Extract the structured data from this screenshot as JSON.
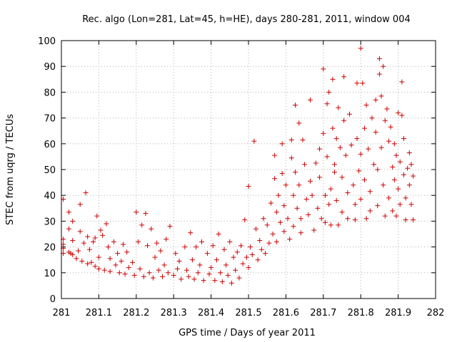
{
  "chart_data": {
    "type": "scatter",
    "title": "Rec. algo (Lon=281, Lat=45, h=HE), days 280-281, 2011, window 004",
    "xlabel": "GPS time / Days of year 2011",
    "ylabel": "STEC from uqrg / TECUs",
    "xlim": [
      281,
      282
    ],
    "ylim": [
      0,
      100
    ],
    "xticks": [
      281,
      281.1,
      281.2,
      281.3,
      281.4,
      281.5,
      281.6,
      281.7,
      281.8,
      281.9,
      282
    ],
    "xtick_labels": [
      "281",
      "281.1",
      "281.2",
      "281.3",
      "281.4",
      "281.5",
      "281.6",
      "281.7",
      "281.8",
      "281.9",
      "282"
    ],
    "yticks": [
      0,
      10,
      20,
      30,
      40,
      50,
      60,
      70,
      80,
      90,
      100
    ],
    "ytick_labels": [
      "0",
      "10",
      "20",
      "30",
      "40",
      "50",
      "60",
      "70",
      "80",
      "90",
      "100"
    ],
    "grid": true,
    "marker": "plus",
    "color": "#cc0000",
    "series": [
      {
        "name": "",
        "points": [
          [
            281.005,
            38.5
          ],
          [
            281.005,
            23
          ],
          [
            281.005,
            19.5
          ],
          [
            281.005,
            17.5
          ],
          [
            281.005,
            21
          ],
          [
            281.02,
            33.5
          ],
          [
            281.02,
            27
          ],
          [
            281.02,
            18
          ],
          [
            281.025,
            17.5
          ],
          [
            281.03,
            30
          ],
          [
            281.03,
            22.5
          ],
          [
            281.03,
            17
          ],
          [
            281.04,
            15.5
          ],
          [
            281.045,
            18.5
          ],
          [
            281.05,
            36.5
          ],
          [
            281.05,
            26
          ],
          [
            281.055,
            14.5
          ],
          [
            281.06,
            21.5
          ],
          [
            281.065,
            41
          ],
          [
            281.07,
            24
          ],
          [
            281.07,
            13.5
          ],
          [
            281.075,
            19
          ],
          [
            281.08,
            14
          ],
          [
            281.085,
            22
          ],
          [
            281.09,
            23.5
          ],
          [
            281.09,
            12.5
          ],
          [
            281.095,
            32
          ],
          [
            281.1,
            16
          ],
          [
            281.1,
            11.5
          ],
          [
            281.105,
            26.5
          ],
          [
            281.11,
            24.5
          ],
          [
            281.115,
            11
          ],
          [
            281.12,
            29
          ],
          [
            281.125,
            20
          ],
          [
            281.13,
            15.5
          ],
          [
            281.13,
            10.5
          ],
          [
            281.14,
            22
          ],
          [
            281.145,
            13
          ],
          [
            281.15,
            17.5
          ],
          [
            281.155,
            10
          ],
          [
            281.16,
            14.5
          ],
          [
            281.165,
            21
          ],
          [
            281.17,
            9.5
          ],
          [
            281.175,
            18
          ],
          [
            281.18,
            12
          ],
          [
            281.19,
            14
          ],
          [
            281.195,
            9
          ],
          [
            281.2,
            33.5
          ],
          [
            281.205,
            22
          ],
          [
            281.21,
            11.5
          ],
          [
            281.215,
            28.5
          ],
          [
            281.22,
            8.5
          ],
          [
            281.225,
            33
          ],
          [
            281.23,
            20.5
          ],
          [
            281.235,
            10
          ],
          [
            281.24,
            27
          ],
          [
            281.245,
            8
          ],
          [
            281.25,
            16
          ],
          [
            281.255,
            21.5
          ],
          [
            281.26,
            11
          ],
          [
            281.265,
            18.5
          ],
          [
            281.27,
            8.5
          ],
          [
            281.275,
            13
          ],
          [
            281.28,
            23
          ],
          [
            281.285,
            10
          ],
          [
            281.29,
            28
          ],
          [
            281.3,
            9
          ],
          [
            281.305,
            17.5
          ],
          [
            281.31,
            11.5
          ],
          [
            281.315,
            14.5
          ],
          [
            281.32,
            7.5
          ],
          [
            281.33,
            20
          ],
          [
            281.335,
            11
          ],
          [
            281.34,
            8.5
          ],
          [
            281.345,
            25.5
          ],
          [
            281.35,
            15
          ],
          [
            281.355,
            7.5
          ],
          [
            281.36,
            20
          ],
          [
            281.365,
            10
          ],
          [
            281.37,
            13
          ],
          [
            281.375,
            22
          ],
          [
            281.38,
            7
          ],
          [
            281.39,
            17.5
          ],
          [
            281.395,
            9.5
          ],
          [
            281.4,
            12
          ],
          [
            281.405,
            20.5
          ],
          [
            281.41,
            7
          ],
          [
            281.415,
            15
          ],
          [
            281.42,
            25
          ],
          [
            281.425,
            10
          ],
          [
            281.43,
            6.5
          ],
          [
            281.435,
            19
          ],
          [
            281.44,
            13
          ],
          [
            281.445,
            9
          ],
          [
            281.45,
            22
          ],
          [
            281.455,
            6
          ],
          [
            281.46,
            16
          ],
          [
            281.465,
            11
          ],
          [
            281.47,
            18
          ],
          [
            281.475,
            8
          ],
          [
            281.48,
            20.5
          ],
          [
            281.485,
            13.5
          ],
          [
            281.49,
            30.5
          ],
          [
            281.495,
            16
          ],
          [
            281.5,
            43.5
          ],
          [
            281.5,
            12
          ],
          [
            281.505,
            20
          ],
          [
            281.51,
            17
          ],
          [
            281.515,
            61
          ],
          [
            281.52,
            27
          ],
          [
            281.525,
            15
          ],
          [
            281.53,
            22.5
          ],
          [
            281.535,
            19
          ],
          [
            281.54,
            31
          ],
          [
            281.545,
            17.5
          ],
          [
            281.55,
            28.5
          ],
          [
            281.555,
            21.5
          ],
          [
            281.56,
            37
          ],
          [
            281.565,
            25
          ],
          [
            281.57,
            55.5
          ],
          [
            281.57,
            46.5
          ],
          [
            281.575,
            33.5
          ],
          [
            281.575,
            22
          ],
          [
            281.58,
            40
          ],
          [
            281.585,
            29.5
          ],
          [
            281.59,
            60
          ],
          [
            281.59,
            48.5
          ],
          [
            281.595,
            36
          ],
          [
            281.595,
            26
          ],
          [
            281.6,
            44
          ],
          [
            281.605,
            31
          ],
          [
            281.61,
            23
          ],
          [
            281.615,
            61.5
          ],
          [
            281.615,
            54.5
          ],
          [
            281.62,
            40
          ],
          [
            281.62,
            28
          ],
          [
            281.625,
            75
          ],
          [
            281.625,
            49
          ],
          [
            281.63,
            35
          ],
          [
            281.635,
            68
          ],
          [
            281.635,
            44
          ],
          [
            281.64,
            31
          ],
          [
            281.64,
            25.5
          ],
          [
            281.645,
            61.5
          ],
          [
            281.65,
            52
          ],
          [
            281.655,
            38.5
          ],
          [
            281.66,
            32.5
          ],
          [
            281.665,
            77
          ],
          [
            281.665,
            45.5
          ],
          [
            281.67,
            40
          ],
          [
            281.675,
            26.5
          ],
          [
            281.68,
            52.5
          ],
          [
            281.685,
            35
          ],
          [
            281.69,
            58
          ],
          [
            281.69,
            47
          ],
          [
            281.695,
            31
          ],
          [
            281.7,
            89
          ],
          [
            281.7,
            64
          ],
          [
            281.705,
            40
          ],
          [
            281.705,
            29.5
          ],
          [
            281.71,
            75.5
          ],
          [
            281.71,
            55
          ],
          [
            281.715,
            80
          ],
          [
            281.715,
            36.5
          ],
          [
            281.72,
            42.5
          ],
          [
            281.72,
            28.5
          ],
          [
            281.725,
            85
          ],
          [
            281.725,
            66
          ],
          [
            281.73,
            52
          ],
          [
            281.73,
            49
          ],
          [
            281.735,
            62
          ],
          [
            281.735,
            38
          ],
          [
            281.74,
            74
          ],
          [
            281.74,
            28.5
          ],
          [
            281.745,
            58.5
          ],
          [
            281.75,
            47
          ],
          [
            281.75,
            33.5
          ],
          [
            281.755,
            86
          ],
          [
            281.755,
            69
          ],
          [
            281.76,
            55.5
          ],
          [
            281.765,
            41
          ],
          [
            281.765,
            31
          ],
          [
            281.77,
            71.5
          ],
          [
            281.775,
            59.5
          ],
          [
            281.78,
            44
          ],
          [
            281.785,
            36.5
          ],
          [
            281.785,
            30.5
          ],
          [
            281.79,
            83.5
          ],
          [
            281.79,
            62
          ],
          [
            281.795,
            49.5
          ],
          [
            281.8,
            97
          ],
          [
            281.8,
            56
          ],
          [
            281.8,
            38.5
          ],
          [
            281.805,
            83.5
          ],
          [
            281.81,
            66
          ],
          [
            281.81,
            46
          ],
          [
            281.815,
            75
          ],
          [
            281.815,
            31
          ],
          [
            281.82,
            58
          ],
          [
            281.825,
            41.5
          ],
          [
            281.825,
            34
          ],
          [
            281.83,
            70
          ],
          [
            281.835,
            52
          ],
          [
            281.84,
            77
          ],
          [
            281.84,
            64.5
          ],
          [
            281.845,
            50
          ],
          [
            281.845,
            36
          ],
          [
            281.85,
            93
          ],
          [
            281.85,
            87
          ],
          [
            281.855,
            78.5
          ],
          [
            281.855,
            58.5
          ],
          [
            281.86,
            90
          ],
          [
            281.86,
            44
          ],
          [
            281.865,
            69
          ],
          [
            281.865,
            32
          ],
          [
            281.87,
            73.5
          ],
          [
            281.875,
            61
          ],
          [
            281.875,
            39
          ],
          [
            281.88,
            66.5
          ],
          [
            281.885,
            51
          ],
          [
            281.885,
            34
          ],
          [
            281.89,
            60
          ],
          [
            281.89,
            46
          ],
          [
            281.895,
            55.5
          ],
          [
            281.895,
            32
          ],
          [
            281.9,
            72
          ],
          [
            281.9,
            42.5
          ],
          [
            281.905,
            53
          ],
          [
            281.905,
            36.5
          ],
          [
            281.91,
            84
          ],
          [
            281.91,
            71
          ],
          [
            281.915,
            62
          ],
          [
            281.915,
            48
          ],
          [
            281.92,
            39
          ],
          [
            281.92,
            30.5
          ],
          [
            281.925,
            50.5
          ],
          [
            281.93,
            56.5
          ],
          [
            281.93,
            44
          ],
          [
            281.935,
            52
          ],
          [
            281.935,
            36.5
          ],
          [
            281.94,
            30.5
          ],
          [
            281.94,
            47.5
          ]
        ]
      }
    ]
  }
}
